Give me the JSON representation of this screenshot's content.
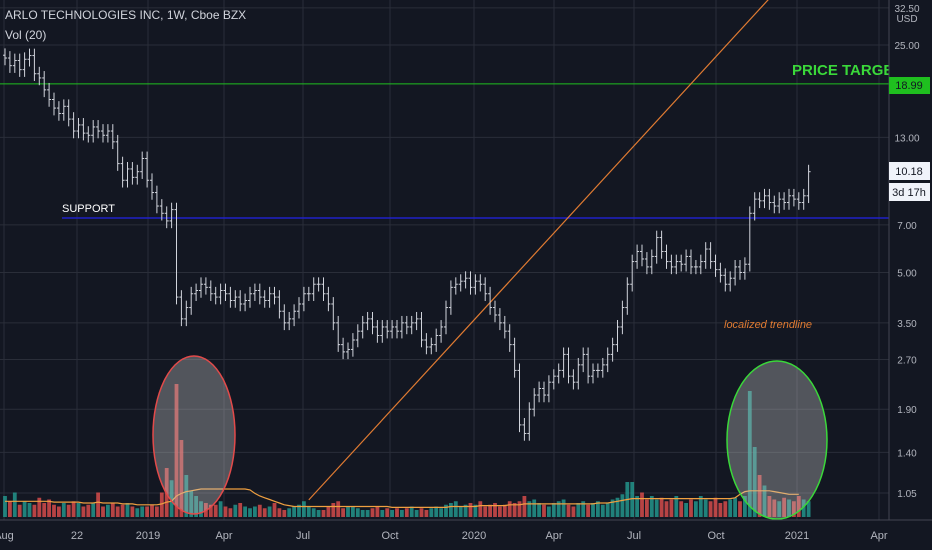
{
  "header": {
    "title": "ARLO TECHNOLOGIES INC, 1W, Cboe BZX",
    "indicator": "Vol (20)"
  },
  "colors": {
    "background": "#131722",
    "grid": "#2a2e39",
    "bars": "#d1d4dc",
    "target_line": "#1fbf1f",
    "target_text": "#3ad83a",
    "support_line": "#2020c8",
    "trendline": "#e07b32",
    "vol_up": "#26a69a",
    "vol_down": "#ef5350",
    "vol_ma": "#f0a040",
    "ellipse_red": "#e24a4a",
    "ellipse_green": "#3ad83a"
  },
  "chart_data": {
    "type": "ohlc",
    "y_scale": "log",
    "currency": "USD",
    "y_ticks": [
      "32.50",
      "25.00",
      "18.99",
      "13.00",
      "10.18",
      "7.00",
      "5.00",
      "3.50",
      "2.70",
      "1.90",
      "1.40",
      "1.05"
    ],
    "x_ticks": [
      "Aug",
      "22",
      "2019",
      "Apr",
      "Jul",
      "Oct",
      "2020",
      "Apr",
      "Jul",
      "Oct",
      "2021",
      "Apr"
    ],
    "last_price": "10.18",
    "countdown": "3d 17h",
    "target_price": "18.99",
    "annotations": {
      "price_target": "PRICE TARGET",
      "support": "SUPPORT",
      "trendline": "localized trendline"
    },
    "support_level": 7.35,
    "trendline_points": [
      {
        "week": 62,
        "price": 1.0
      },
      {
        "week": 126,
        "price": 11.2
      }
    ],
    "weekly_close": [
      22.8,
      21.6,
      22.4,
      21.0,
      22.6,
      23.2,
      20.4,
      19.8,
      18.2,
      17.0,
      16.0,
      15.4,
      16.2,
      14.8,
      13.6,
      14.2,
      13.4,
      13.2,
      14.0,
      13.6,
      13.2,
      13.6,
      12.6,
      10.8,
      9.6,
      10.4,
      9.8,
      10.2,
      11.2,
      9.6,
      8.8,
      8.0,
      7.6,
      7.2,
      7.8,
      4.2,
      3.6,
      3.9,
      4.3,
      4.4,
      4.6,
      4.5,
      4.3,
      4.2,
      4.4,
      4.3,
      4.1,
      4.2,
      4.0,
      4.1,
      4.3,
      4.4,
      4.2,
      4.1,
      4.3,
      4.2,
      3.8,
      3.5,
      3.6,
      3.8,
      4.0,
      4.3,
      4.3,
      4.6,
      4.6,
      4.3,
      4.0,
      3.5,
      3.0,
      2.85,
      2.9,
      3.1,
      3.3,
      3.5,
      3.6,
      3.4,
      3.2,
      3.4,
      3.3,
      3.4,
      3.3,
      3.5,
      3.4,
      3.5,
      3.6,
      3.1,
      2.95,
      3.0,
      3.2,
      3.4,
      3.9,
      4.5,
      4.6,
      4.7,
      4.8,
      4.5,
      4.7,
      4.6,
      4.3,
      3.9,
      3.7,
      3.5,
      3.3,
      3.0,
      2.5,
      1.7,
      1.6,
      1.9,
      2.1,
      2.2,
      2.1,
      2.3,
      2.4,
      2.5,
      2.8,
      2.4,
      2.3,
      2.6,
      2.8,
      2.4,
      2.5,
      2.5,
      2.6,
      2.8,
      3.0,
      3.4,
      3.9,
      4.6,
      5.4,
      5.8,
      5.5,
      5.2,
      5.6,
      6.4,
      5.8,
      5.4,
      5.2,
      5.4,
      5.3,
      5.6,
      5.2,
      5.2,
      5.4,
      5.9,
      5.4,
      5.1,
      4.9,
      4.6,
      4.8,
      5.2,
      5.0,
      5.3,
      7.6,
      8.4,
      8.3,
      8.6,
      8.2,
      8.0,
      8.4,
      8.2,
      8.6,
      8.4,
      8.2,
      8.6,
      10.2
    ],
    "volume_millions": [
      1.2,
      0.9,
      1.4,
      0.7,
      0.9,
      0.8,
      0.7,
      1.1,
      0.8,
      1.0,
      0.7,
      0.6,
      0.8,
      0.7,
      0.9,
      0.8,
      0.6,
      0.7,
      0.8,
      1.4,
      0.6,
      0.7,
      0.8,
      0.6,
      0.7,
      0.8,
      0.6,
      0.5,
      0.6,
      0.6,
      0.7,
      0.6,
      1.4,
      2.8,
      2.1,
      7.6,
      4.4,
      2.4,
      1.5,
      1.2,
      0.9,
      0.8,
      0.7,
      0.7,
      0.9,
      0.6,
      0.5,
      0.7,
      0.8,
      0.6,
      0.5,
      0.6,
      0.7,
      0.5,
      0.6,
      0.8,
      0.5,
      0.4,
      0.5,
      0.6,
      0.7,
      0.9,
      0.6,
      0.5,
      0.4,
      0.4,
      0.6,
      0.8,
      0.9,
      0.5,
      0.6,
      0.6,
      0.5,
      0.4,
      0.4,
      0.5,
      0.6,
      0.4,
      0.5,
      0.4,
      0.5,
      0.4,
      0.5,
      0.6,
      0.4,
      0.5,
      0.4,
      0.5,
      0.6,
      0.5,
      0.7,
      0.8,
      0.9,
      0.6,
      0.7,
      0.8,
      0.7,
      0.9,
      0.6,
      0.7,
      0.8,
      0.6,
      0.7,
      0.9,
      0.8,
      0.9,
      1.2,
      0.9,
      1.0,
      0.8,
      0.7,
      0.6,
      0.8,
      0.9,
      1.0,
      0.7,
      0.6,
      0.8,
      0.9,
      0.7,
      0.8,
      0.9,
      0.7,
      0.8,
      1.0,
      1.1,
      1.3,
      2.0,
      2.0,
      1.2,
      1.4,
      1.0,
      1.2,
      1.0,
      1.1,
      0.9,
      1.0,
      1.2,
      0.9,
      0.8,
      1.0,
      0.9,
      1.2,
      1.0,
      0.9,
      1.1,
      0.8,
      0.9,
      1.0,
      1.1,
      0.9,
      1.2,
      7.2,
      4.0,
      2.4,
      1.8,
      1.2,
      1.0,
      0.9,
      1.1,
      1.0,
      0.9,
      1.2,
      1.0,
      0.9
    ],
    "volume_ma_millions": [
      0.9,
      0.9,
      0.9,
      0.9,
      0.9,
      0.9,
      0.9,
      0.9,
      0.9,
      0.9,
      0.85,
      0.85,
      0.85,
      0.85,
      0.85,
      0.85,
      0.8,
      0.8,
      0.8,
      0.85,
      0.8,
      0.8,
      0.8,
      0.8,
      0.75,
      0.75,
      0.75,
      0.7,
      0.7,
      0.7,
      0.7,
      0.7,
      0.75,
      0.85,
      0.9,
      1.2,
      1.35,
      1.45,
      1.5,
      1.55,
      1.6,
      1.6,
      1.6,
      1.6,
      1.6,
      1.6,
      1.6,
      1.6,
      1.6,
      1.6,
      1.55,
      1.35,
      1.2,
      1.1,
      1.0,
      0.9,
      0.8,
      0.7,
      0.65,
      0.6,
      0.6,
      0.6,
      0.6,
      0.6,
      0.6,
      0.6,
      0.6,
      0.6,
      0.6,
      0.6,
      0.6,
      0.6,
      0.6,
      0.6,
      0.6,
      0.6,
      0.6,
      0.6,
      0.6,
      0.55,
      0.55,
      0.55,
      0.55,
      0.55,
      0.55,
      0.55,
      0.55,
      0.55,
      0.55,
      0.55,
      0.55,
      0.6,
      0.6,
      0.6,
      0.6,
      0.6,
      0.6,
      0.65,
      0.65,
      0.65,
      0.65,
      0.65,
      0.65,
      0.7,
      0.7,
      0.7,
      0.75,
      0.75,
      0.75,
      0.75,
      0.75,
      0.75,
      0.75,
      0.75,
      0.75,
      0.75,
      0.75,
      0.75,
      0.75,
      0.75,
      0.75,
      0.8,
      0.8,
      0.8,
      0.85,
      0.9,
      0.95,
      1.0,
      1.05,
      1.05,
      1.05,
      1.05,
      1.05,
      1.05,
      1.05,
      1.05,
      1.05,
      1.05,
      1.05,
      1.05,
      1.05,
      1.05,
      1.05,
      1.05,
      1.05,
      1.05,
      1.05,
      1.05,
      1.05,
      1.1,
      1.3,
      1.45,
      1.5,
      1.5,
      1.5,
      1.5,
      1.5,
      1.45,
      1.4,
      1.35,
      1.3,
      1.3,
      1.3
    ]
  }
}
